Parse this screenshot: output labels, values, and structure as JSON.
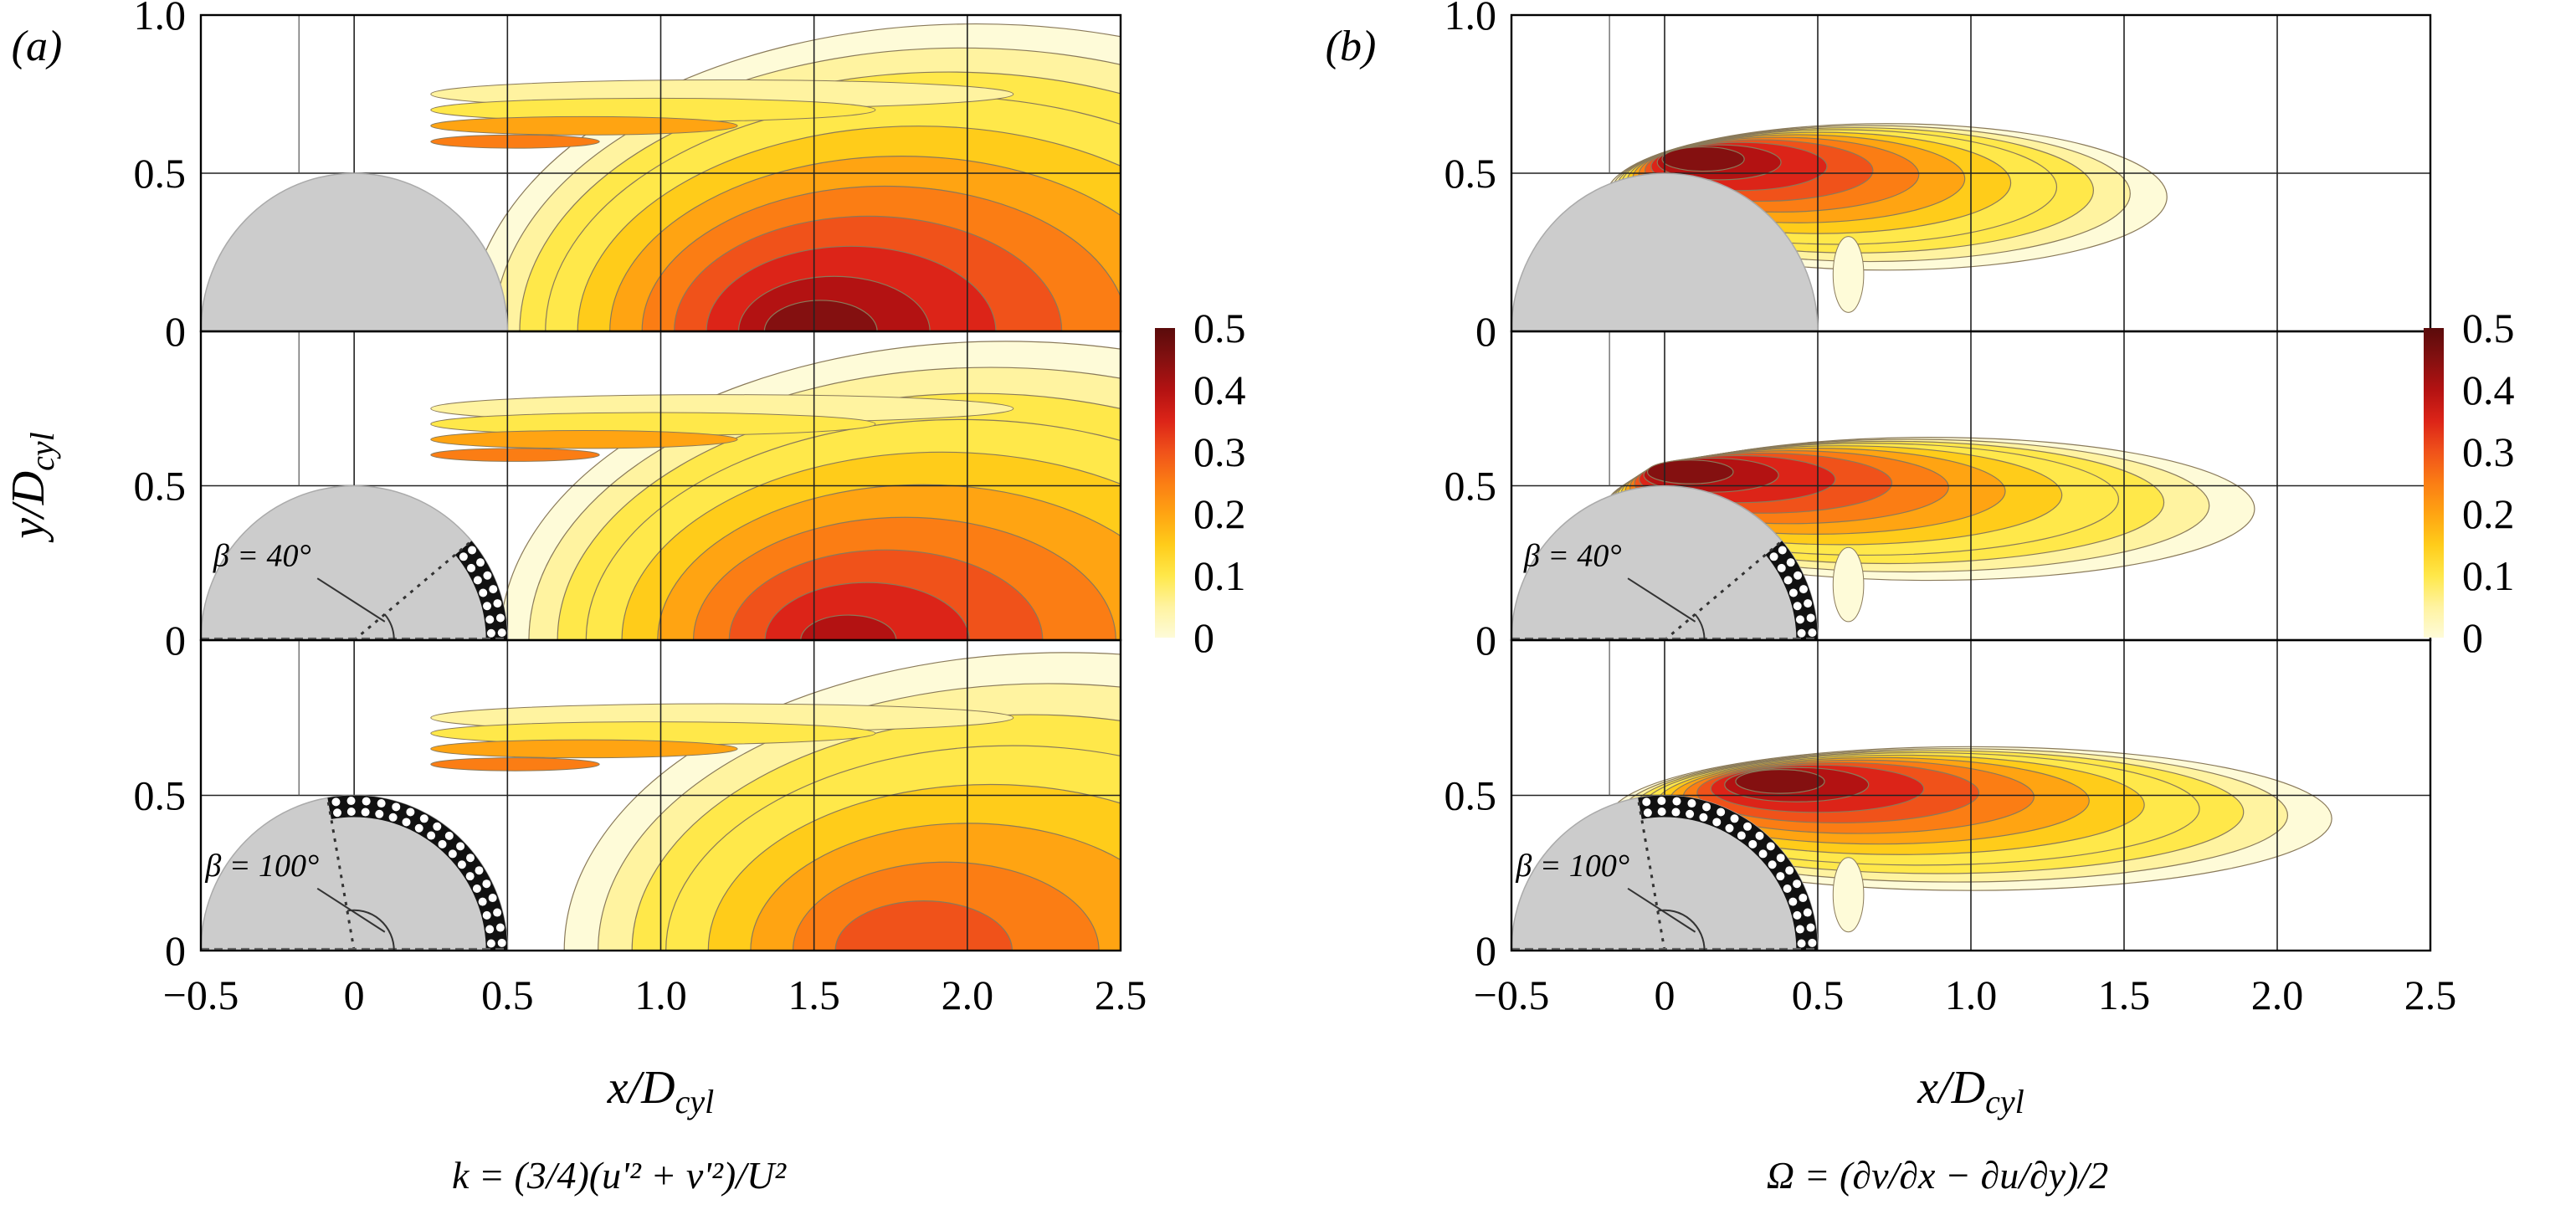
{
  "chart_data": [
    {
      "type": "heatmap",
      "panel": "(a)",
      "xlabel": "x/D_cyl",
      "ylabel": "y/D_cyl",
      "formula": "k = (3/4)(u'² + v'²)/U²",
      "x_ticks": [
        "-0.5",
        "0",
        "0.5",
        "1.0",
        "1.5",
        "2.0",
        "2.5"
      ],
      "y_ticks": [
        "0",
        "0.5",
        "1.0"
      ],
      "xlim": [
        -0.5,
        2.5
      ],
      "ylim": [
        0,
        1.0
      ],
      "colorbar": {
        "ticks": [
          "0",
          "0.1",
          "0.2",
          "0.3",
          "0.4",
          "0.5"
        ],
        "range": [
          0,
          0.5
        ]
      },
      "subplots": [
        {
          "name": "baseline",
          "beta_label": "",
          "peak": {
            "x": 1.5,
            "y": 0.05,
            "value": 0.5
          }
        },
        {
          "name": "beta-40",
          "beta_label": "β = 40°",
          "peak": {
            "x": 1.6,
            "y": 0.1,
            "value": 0.45
          }
        },
        {
          "name": "beta-100",
          "beta_label": "β = 100°",
          "peak": {
            "x": 1.8,
            "y": 0.15,
            "value": 0.38
          }
        }
      ]
    },
    {
      "type": "heatmap",
      "panel": "(b)",
      "xlabel": "x/D_cyl",
      "ylabel": "y/D_cyl",
      "formula": "Ω = (∂v/∂x − ∂u/∂y)/2",
      "x_ticks": [
        "-0.5",
        "0",
        "0.5",
        "1.0",
        "1.5",
        "2.0",
        "2.5"
      ],
      "y_ticks": [
        "0",
        "0.5",
        "1.0"
      ],
      "xlim": [
        -0.5,
        2.5
      ],
      "ylim": [
        0,
        1.0
      ],
      "colorbar": {
        "ticks": [
          "0",
          "0.1",
          "0.2",
          "0.3",
          "0.4",
          "0.5"
        ],
        "range": [
          0,
          0.5
        ]
      },
      "subplots": [
        {
          "name": "baseline",
          "beta_label": "",
          "extent_x": 1.5,
          "peak": {
            "x": 0.1,
            "y": 0.55,
            "value": 0.5
          }
        },
        {
          "name": "beta-40",
          "beta_label": "β = 40°",
          "extent_x": 1.8,
          "peak": {
            "x": 0.05,
            "y": 0.55,
            "value": 0.5
          }
        },
        {
          "name": "beta-100",
          "beta_label": "β = 100°",
          "extent_x": 2.05,
          "peak": {
            "x": 0.35,
            "y": 0.6,
            "value": 0.5
          }
        }
      ]
    }
  ]
}
